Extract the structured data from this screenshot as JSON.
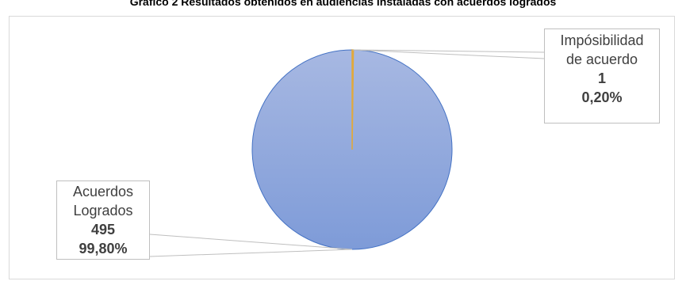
{
  "chart_data": {
    "type": "pie",
    "title": "Gráfico 2 Resultados obtenidos en audiencias instaladas con acuerdos logrados",
    "slices": [
      {
        "name_lines": [
          "Acuerdos",
          "Logrados"
        ],
        "value": 495,
        "percent_label": "99,80%",
        "color": "#8eaadb"
      },
      {
        "name_lines": [
          "Impósibilidad",
          "de acuerdo"
        ],
        "value": 1,
        "percent_label": "0,20%",
        "color": "#e2a93b"
      }
    ]
  }
}
